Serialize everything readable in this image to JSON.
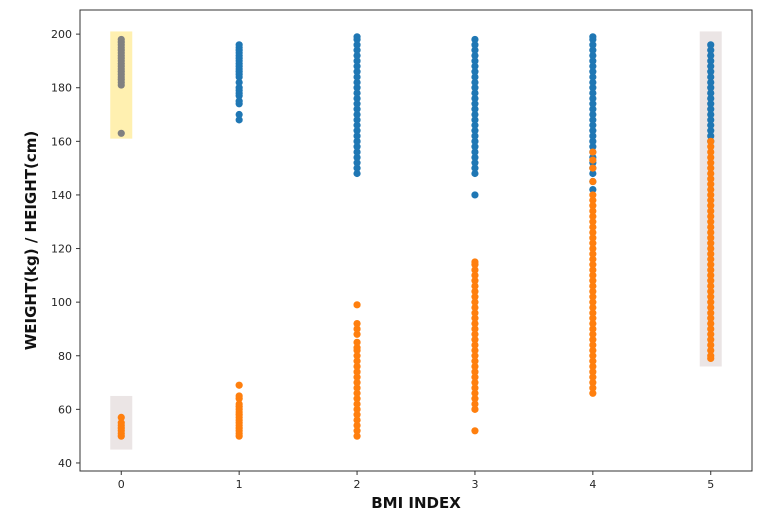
{
  "chart_data": {
    "type": "scatter",
    "title": "",
    "xlabel": "BMI INDEX",
    "ylabel": "WEIGHT(kg) / HEIGHT(cm)",
    "xlim": [
      -0.35,
      5.35
    ],
    "ylim": [
      37,
      209
    ],
    "x_ticks": [
      "0",
      "1",
      "2",
      "3",
      "4",
      "5"
    ],
    "y_ticks": [
      "40",
      "60",
      "80",
      "100",
      "120",
      "140",
      "160",
      "180",
      "200"
    ],
    "grid": false,
    "legend": "none",
    "colors": {
      "height": "#1f77b4",
      "weight": "#ff7f0e",
      "highlighted_height": "#808080",
      "highlight_yellow": "#fff0b0",
      "highlight_gray": "#ebe5e5"
    },
    "series": [
      {
        "values_by_index": {
          "0": [
            163,
            181,
            182,
            183,
            184,
            185,
            186,
            187,
            188,
            189,
            190,
            191,
            192,
            193,
            194,
            195,
            196,
            197,
            198
          ],
          "1": [
            168,
            170,
            174,
            175,
            177,
            178,
            179,
            180,
            182,
            184,
            185,
            186,
            187,
            188,
            189,
            190,
            191,
            192,
            193,
            194,
            195,
            196
          ],
          "2": [
            148,
            150,
            152,
            154,
            156,
            158,
            160,
            162,
            164,
            166,
            168,
            170,
            172,
            174,
            176,
            178,
            180,
            182,
            184,
            186,
            188,
            190,
            192,
            194,
            196,
            198,
            199
          ],
          "3": [
            140,
            148,
            150,
            152,
            154,
            156,
            158,
            160,
            162,
            164,
            166,
            168,
            170,
            172,
            174,
            176,
            178,
            180,
            182,
            184,
            186,
            188,
            190,
            192,
            194,
            196,
            198
          ],
          "4": [
            142,
            145,
            148,
            150,
            152,
            154,
            156,
            158,
            160,
            162,
            164,
            166,
            168,
            170,
            172,
            174,
            176,
            178,
            180,
            182,
            184,
            186,
            188,
            190,
            192,
            194,
            196,
            198,
            199
          ],
          "5": [
            160,
            162,
            164,
            166,
            168,
            170,
            172,
            174,
            176,
            178,
            180,
            182,
            184,
            186,
            188,
            190,
            192,
            194,
            196
          ]
        }
      },
      {
        "values_by_index": {
          "0": [
            50,
            51,
            52,
            53,
            54,
            55,
            57
          ],
          "1": [
            50,
            51,
            52,
            53,
            54,
            55,
            56,
            57,
            58,
            59,
            60,
            61,
            62,
            64,
            65,
            69
          ],
          "2": [
            50,
            52,
            54,
            56,
            58,
            60,
            62,
            64,
            66,
            68,
            70,
            72,
            74,
            76,
            78,
            80,
            82,
            83,
            85,
            88,
            90,
            92,
            99
          ],
          "3": [
            52,
            60,
            62,
            64,
            66,
            68,
            70,
            72,
            74,
            76,
            78,
            80,
            82,
            84,
            86,
            88,
            90,
            92,
            94,
            96,
            98,
            100,
            102,
            104,
            106,
            108,
            110,
            112,
            114,
            115
          ],
          "4": [
            66,
            68,
            70,
            72,
            74,
            76,
            78,
            80,
            82,
            84,
            86,
            88,
            90,
            92,
            94,
            96,
            98,
            100,
            102,
            104,
            106,
            108,
            110,
            112,
            114,
            116,
            118,
            120,
            122,
            124,
            126,
            128,
            130,
            132,
            134,
            136,
            138,
            140,
            145,
            150,
            153,
            156
          ],
          "5": [
            79,
            80,
            82,
            84,
            86,
            88,
            90,
            92,
            94,
            96,
            98,
            100,
            102,
            104,
            106,
            108,
            110,
            112,
            114,
            116,
            118,
            120,
            122,
            124,
            126,
            128,
            130,
            132,
            134,
            136,
            138,
            140,
            142,
            144,
            146,
            148,
            150,
            152,
            154,
            156,
            158,
            160
          ]
        }
      }
    ],
    "highlights": [
      {
        "x": 0,
        "y_range": [
          161,
          201
        ],
        "color": "highlight_yellow"
      },
      {
        "x": 0,
        "y_range": [
          45,
          65
        ],
        "color": "highlight_gray"
      },
      {
        "x": 5,
        "y_range": [
          76,
          201
        ],
        "color": "highlight_gray"
      }
    ]
  }
}
